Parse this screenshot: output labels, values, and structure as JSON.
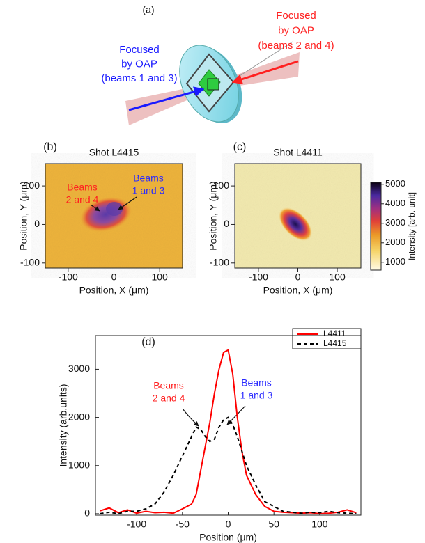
{
  "diagram": {
    "label": "(a)",
    "left_label": {
      "lines": [
        "Focused",
        "by OAP",
        "(beams 1 and 3)"
      ],
      "color": "#1a1aff"
    },
    "right_label": {
      "lines": [
        "Focused",
        "by OAP",
        "(beams 2 and 4)"
      ],
      "color": "#ff2020"
    }
  },
  "chart_data": [
    {
      "type": "heatmap",
      "panel_label": "(b)",
      "title": "Shot L4415",
      "xlabel": "Position, X (μm)",
      "ylabel": "Position, Y (μm)",
      "xlim": [
        -150,
        150
      ],
      "xticks": [
        -100,
        0,
        100
      ],
      "ylim": [
        -113,
        158
      ],
      "yticks": [
        -100,
        0,
        100
      ],
      "annotations": [
        {
          "lines": [
            "Beams",
            "2 and 4"
          ],
          "color": "#ff2020"
        },
        {
          "lines": [
            "Beams",
            "1 and 3"
          ],
          "color": "#2a2aff"
        }
      ]
    },
    {
      "type": "heatmap",
      "panel_label": "(c)",
      "title": "Shot L4411",
      "xlabel": "Position, X (μm)",
      "ylabel": "Position, Y (μm)",
      "xlim": [
        -160,
        160
      ],
      "xticks": [
        -100,
        0,
        100
      ],
      "ylim": [
        -113,
        158
      ],
      "yticks": [
        -100,
        0,
        100
      ],
      "colorbar": {
        "label": "Intensity [arb. unit]",
        "lim": [
          600,
          5100
        ],
        "ticks": [
          1000,
          2000,
          3000,
          4000,
          5000
        ]
      }
    },
    {
      "type": "line",
      "panel_label": "(d)",
      "xlabel": "Position (μm)",
      "ylabel": "Intensity (arb.units)",
      "x": [
        -140,
        -130,
        -120,
        -110,
        -100,
        -90,
        -80,
        -70,
        -60,
        -50,
        -40,
        -35,
        -30,
        -25,
        -20,
        -15,
        -10,
        -5,
        0,
        5,
        10,
        15,
        20,
        30,
        40,
        50,
        60,
        70,
        80,
        90,
        100,
        110,
        120,
        130,
        140
      ],
      "series": [
        {
          "name": "L4411",
          "color": "#ff0000",
          "dashed": false,
          "values": [
            60,
            120,
            20,
            80,
            10,
            50,
            20,
            30,
            10,
            100,
            200,
            400,
            900,
            1400,
            1900,
            2500,
            3000,
            3350,
            3400,
            2900,
            2000,
            1300,
            800,
            400,
            150,
            50,
            30,
            20,
            10,
            20,
            0,
            10,
            30,
            80,
            20
          ]
        },
        {
          "name": "L4415",
          "color": "#000000",
          "dashed": true,
          "values": [
            0,
            30,
            0,
            50,
            50,
            100,
            200,
            450,
            800,
            1200,
            1600,
            1800,
            1750,
            1600,
            1500,
            1550,
            1800,
            1950,
            2000,
            1850,
            1600,
            1300,
            1000,
            600,
            250,
            150,
            50,
            30,
            10,
            30,
            20,
            50,
            20,
            10,
            0
          ]
        }
      ],
      "xlim": [
        -145,
        145
      ],
      "xticks": [
        -100,
        -50,
        0,
        50,
        100
      ],
      "ylim": [
        -30,
        3700
      ],
      "yticks": [
        0,
        1000,
        2000,
        3000
      ],
      "annotations": [
        {
          "lines": [
            "Beams",
            "2 and 4"
          ],
          "color": "#ff2020"
        },
        {
          "lines": [
            "Beams",
            "1 and 3"
          ],
          "color": "#2a2aff"
        }
      ]
    }
  ]
}
